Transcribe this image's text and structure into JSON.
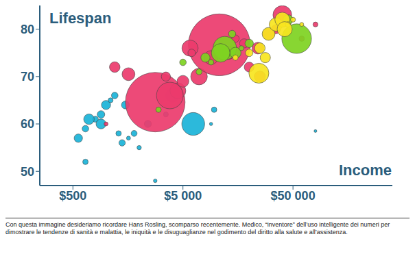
{
  "chart_data": {
    "type": "scatter",
    "x_label": "Income",
    "y_label": "Lifespan",
    "log": "x",
    "grid": false,
    "xlim": [
      250,
      400000
    ],
    "xticks": [
      {
        "value": 500,
        "label": "$500"
      },
      {
        "value": 5000,
        "label": "$5 000"
      },
      {
        "value": 50000,
        "label": "$50 000"
      }
    ],
    "ylim": [
      47,
      85
    ],
    "yticks": [
      50,
      60,
      70,
      80
    ],
    "series": [
      {
        "color": "#1ab3d8",
        "x": [
          650,
          560,
          650,
          800,
          900,
          1000,
          1100,
          1200,
          900,
          1300,
          1600,
          1800,
          2000,
          2400,
          1500,
          3500,
          4000,
          6200,
          9000,
          9600,
          2800,
          80000,
          1400,
          700
        ],
        "values": [
          52,
          57,
          59,
          61,
          62,
          64,
          65,
          66,
          60,
          58,
          57,
          58,
          55,
          60,
          64,
          62,
          66,
          60,
          60,
          63,
          48,
          58.5,
          56,
          61
        ],
        "sizes": [
          10,
          25,
          15,
          12,
          20,
          30,
          8,
          15,
          35,
          10,
          5,
          12,
          6,
          18,
          22,
          8,
          60,
          190,
          3,
          10,
          4,
          2,
          14,
          40
        ]
      },
      {
        "color": "#ec3b6c",
        "x": [
          1600,
          1200,
          2800,
          4500,
          5000,
          3500,
          7000,
          10700,
          13000,
          15000,
          20000,
          25000,
          24000,
          35000,
          40000,
          60000,
          80000,
          1000,
          5800,
          3800,
          9000,
          18000,
          30000,
          6000
        ],
        "values": [
          70.5,
          72,
          64.6,
          67,
          69,
          70,
          70,
          76.7,
          75,
          78,
          72,
          70,
          76,
          80,
          83,
          78,
          81,
          60,
          76,
          66,
          74,
          77,
          79,
          75
        ],
        "sizes": [
          60,
          40,
          1300,
          90,
          50,
          30,
          100,
          1400,
          60,
          20,
          35,
          45,
          50,
          30,
          127,
          10,
          8,
          5,
          95,
          260,
          70,
          30,
          50,
          20
        ]
      },
      {
        "color": "#7ed321",
        "x": [
          8000,
          12000,
          15000,
          20000,
          9000,
          14000,
          5000,
          54000,
          45000,
          3000,
          11000,
          17000,
          7000
        ],
        "values": [
          74,
          76,
          75,
          77,
          73,
          79,
          73,
          78,
          82,
          63,
          75,
          76,
          71
        ],
        "sizes": [
          30,
          200,
          45,
          25,
          10,
          18,
          15,
          320,
          36,
          10,
          125,
          8,
          12
        ]
      },
      {
        "color": "#f7e51f",
        "x": [
          24500,
          25000,
          30000,
          35000,
          40000,
          45000,
          50000,
          60000,
          20000,
          15000,
          28000,
          42000
        ],
        "values": [
          70.7,
          76,
          79,
          81,
          82,
          81,
          82,
          81,
          75,
          74,
          74,
          80
        ],
        "sizes": [
          145,
          40,
          60,
          65,
          80,
          10,
          8,
          5,
          20,
          10,
          38,
          82
        ]
      }
    ],
    "caption": "Con questa immagine desideriamo ricordare Hans Rosling, scomparso recentemente. Medico, “inventore” dell’uso intelligente dei numeri per dimostrare le tendenze di sanità e malattia, le iniquità e le disuguaglianze nel godimento del diritto alla salute e all’assistenza."
  }
}
